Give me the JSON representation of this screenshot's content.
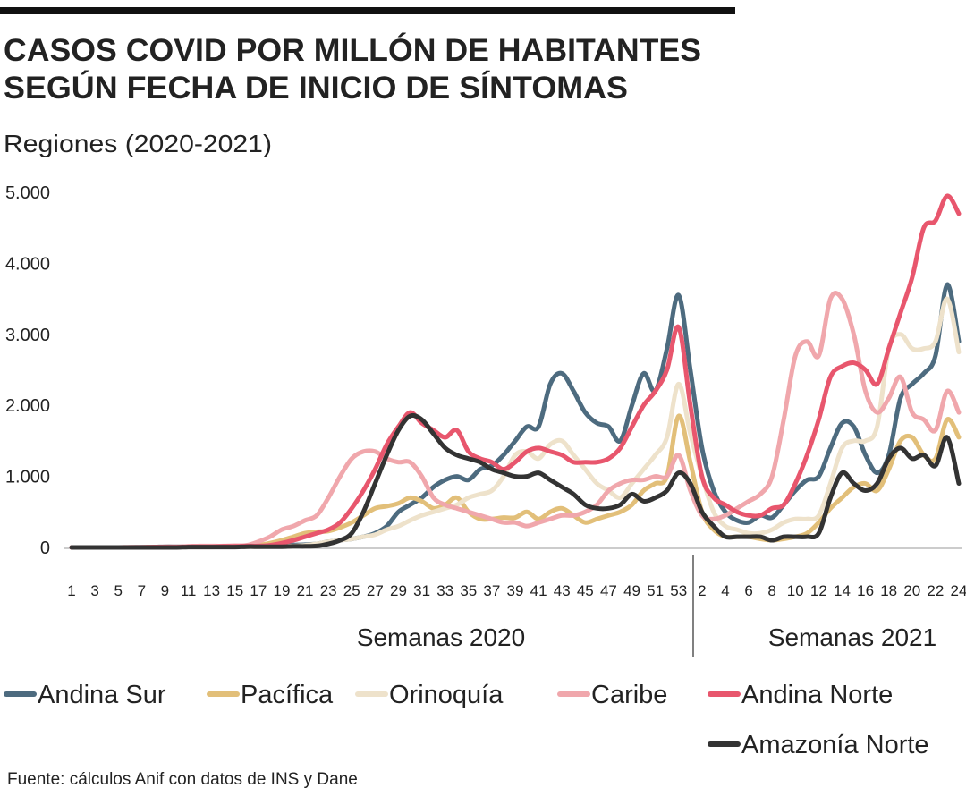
{
  "chart_data": {
    "type": "line",
    "title": [
      "CASOS COVID POR MILLÓN DE HABITANTES",
      "SEGÚN FECHA DE INICIO DE SÍNTOMAS"
    ],
    "subtitle": "Regiones (2020-2021)",
    "xlabels": [
      "Semanas 2020",
      "Semanas 2021"
    ],
    "source": "Fuente: cálculos Anif con datos de INS y Dane",
    "categories": [
      "1",
      null,
      "3",
      null,
      "5",
      null,
      "7",
      null,
      "9",
      null,
      "11",
      null,
      "13",
      null,
      "15",
      null,
      "17",
      null,
      "19",
      null,
      "21",
      null,
      "23",
      null,
      "25",
      null,
      "27",
      null,
      "29",
      null,
      "31",
      null,
      "33",
      null,
      "35",
      null,
      "37",
      null,
      "39",
      null,
      "41",
      null,
      "43",
      null,
      "45",
      null,
      "47",
      null,
      "49",
      null,
      "51",
      null,
      "53",
      null,
      "2",
      null,
      "4",
      null,
      "6",
      null,
      "8",
      null,
      "10",
      null,
      "12",
      null,
      "14",
      null,
      "16",
      null,
      "18",
      null,
      "20",
      null,
      "22",
      null,
      "24"
    ],
    "ylim": [
      0,
      5000
    ],
    "yticks": [
      0,
      {
        "value": 1000,
        "label": "1.000"
      },
      {
        "value": 2000,
        "label": "2.000"
      },
      {
        "value": 3000,
        "label": "3.000"
      },
      {
        "value": 4000,
        "label": "4.000"
      },
      {
        "value": 5000,
        "label": "5.000"
      }
    ],
    "series": [
      {
        "name": "Andina Sur",
        "color": "#4d6b7f",
        "values": [
          0,
          0,
          0,
          0,
          0,
          0,
          5,
          5,
          10,
          10,
          10,
          15,
          15,
          15,
          20,
          20,
          20,
          25,
          30,
          35,
          40,
          50,
          80,
          100,
          120,
          150,
          200,
          300,
          500,
          600,
          700,
          850,
          950,
          1000,
          950,
          1100,
          1150,
          1300,
          1500,
          1700,
          1700,
          2300,
          2450,
          2200,
          1900,
          1750,
          1700,
          1500,
          2000,
          2450,
          2200,
          2800,
          3550,
          2500,
          1400,
          800,
          500,
          380,
          350,
          450,
          420,
          600,
          800,
          950,
          1000,
          1400,
          1750,
          1700,
          1300,
          1050,
          1300,
          2100,
          2300,
          2450,
          2700,
          3700,
          2900
        ]
      },
      {
        "name": "Pacífica",
        "color": "#e2bf79",
        "values": [
          0,
          0,
          0,
          0,
          0,
          0,
          0,
          5,
          5,
          5,
          10,
          10,
          10,
          15,
          15,
          20,
          30,
          60,
          100,
          150,
          200,
          220,
          230,
          280,
          350,
          450,
          550,
          580,
          620,
          700,
          650,
          550,
          600,
          700,
          500,
          400,
          400,
          420,
          420,
          500,
          400,
          500,
          550,
          450,
          350,
          400,
          450,
          500,
          600,
          800,
          900,
          1000,
          1850,
          1200,
          500,
          250,
          150,
          150,
          150,
          120,
          100,
          120,
          150,
          200,
          350,
          550,
          700,
          850,
          900,
          800,
          1100,
          1500,
          1550,
          1300,
          1250,
          1800,
          1550
        ]
      },
      {
        "name": "Orinoquía",
        "color": "#eee2cb",
        "values": [
          0,
          0,
          0,
          0,
          0,
          0,
          0,
          0,
          0,
          5,
          5,
          5,
          5,
          10,
          10,
          10,
          10,
          15,
          15,
          20,
          30,
          50,
          80,
          100,
          120,
          150,
          180,
          250,
          300,
          380,
          450,
          500,
          550,
          600,
          700,
          750,
          800,
          1000,
          1300,
          1350,
          1250,
          1450,
          1500,
          1300,
          1100,
          900,
          800,
          700,
          900,
          1100,
          1300,
          1550,
          2300,
          1600,
          1000,
          500,
          300,
          250,
          200,
          200,
          250,
          350,
          400,
          400,
          450,
          900,
          1400,
          1500,
          1500,
          1700,
          2800,
          3000,
          2800,
          2800,
          2900,
          3500,
          2750
        ]
      },
      {
        "name": "Caribe",
        "color": "#f0a7ac",
        "values": [
          0,
          0,
          0,
          0,
          0,
          5,
          5,
          5,
          10,
          10,
          15,
          20,
          20,
          20,
          25,
          30,
          80,
          150,
          250,
          300,
          380,
          450,
          700,
          1000,
          1250,
          1350,
          1350,
          1250,
          1200,
          1200,
          1000,
          700,
          600,
          550,
          500,
          450,
          400,
          350,
          350,
          300,
          350,
          400,
          450,
          450,
          500,
          600,
          800,
          900,
          950,
          950,
          1000,
          1000,
          1300,
          800,
          450,
          400,
          450,
          550,
          650,
          750,
          1000,
          1800,
          2700,
          2900,
          2700,
          3500,
          3500,
          3000,
          2200,
          1900,
          2100,
          2400,
          1900,
          1800,
          1650,
          2200,
          1900
        ]
      },
      {
        "name": "Andina Norte",
        "color": "#e8566d",
        "values": [
          0,
          0,
          0,
          0,
          0,
          0,
          0,
          5,
          5,
          5,
          10,
          10,
          10,
          15,
          15,
          20,
          20,
          30,
          60,
          100,
          150,
          200,
          250,
          350,
          550,
          800,
          1100,
          1450,
          1700,
          1900,
          1750,
          1650,
          1550,
          1650,
          1350,
          1250,
          1200,
          1100,
          1200,
          1350,
          1400,
          1350,
          1300,
          1200,
          1200,
          1200,
          1250,
          1400,
          1700,
          2000,
          2200,
          2500,
          3100,
          2000,
          1000,
          700,
          600,
          500,
          450,
          450,
          550,
          600,
          900,
          1300,
          1800,
          2400,
          2550,
          2600,
          2500,
          2300,
          2800,
          3300,
          3800,
          4500,
          4600,
          4950,
          4700
        ]
      },
      {
        "name": "Amazonía Norte",
        "color": "#333333",
        "values": [
          0,
          0,
          0,
          0,
          0,
          0,
          0,
          0,
          0,
          0,
          5,
          5,
          5,
          5,
          5,
          10,
          10,
          10,
          10,
          15,
          15,
          20,
          50,
          100,
          200,
          500,
          900,
          1300,
          1650,
          1850,
          1800,
          1600,
          1400,
          1300,
          1250,
          1200,
          1100,
          1050,
          1000,
          1000,
          1050,
          950,
          850,
          750,
          600,
          550,
          550,
          600,
          750,
          650,
          700,
          800,
          1050,
          900,
          500,
          300,
          150,
          150,
          150,
          150,
          100,
          150,
          150,
          150,
          200,
          700,
          1050,
          900,
          800,
          900,
          1250,
          1400,
          1250,
          1300,
          1150,
          1550,
          900
        ]
      }
    ]
  }
}
